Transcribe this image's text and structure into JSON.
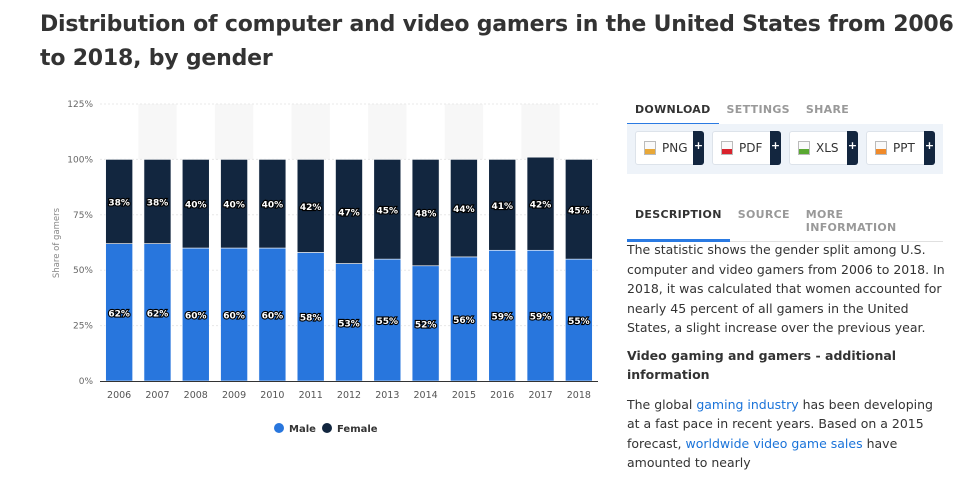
{
  "title": "Distribution of computer and video gamers in the United States from 2006 to 2018, by gender",
  "download_tabs": [
    "DOWNLOAD",
    "SETTINGS",
    "SHARE"
  ],
  "download_buttons": [
    {
      "label": "PNG",
      "color": "#e8a838"
    },
    {
      "label": "PDF",
      "color": "#d9232d"
    },
    {
      "label": "XLS",
      "color": "#5aa832"
    },
    {
      "label": "PPT",
      "color": "#f08a2a"
    }
  ],
  "plus": "+",
  "desc_tabs": [
    "DESCRIPTION",
    "SOURCE",
    "MORE INFORMATION"
  ],
  "description": {
    "p1": "The statistic shows the gender split among U.S. computer and video gamers from 2006 to 2018. In 2018, it was calculated that women accounted for nearly 45 percent of all gamers in the United States, a slight increase over the previous year.",
    "heading": "Video gaming and gamers - additional information",
    "p2_a": "The global ",
    "p2_link1": "gaming industry",
    "p2_b": " has been developing at a fast pace in recent years. Based on a 2015 forecast, ",
    "p2_link2": "worldwide video game sales",
    "p2_c": " have amounted to nearly"
  },
  "chart_data": {
    "type": "bar",
    "stacked": true,
    "categories": [
      "2006",
      "2007",
      "2008",
      "2009",
      "2010",
      "2011",
      "2012",
      "2013",
      "2014",
      "2015",
      "2016",
      "2017",
      "2018"
    ],
    "series": [
      {
        "name": "Male",
        "color": "#2876dd",
        "values": [
          62,
          62,
          60,
          60,
          60,
          58,
          53,
          55,
          52,
          56,
          59,
          59,
          55
        ]
      },
      {
        "name": "Female",
        "color": "#12263f",
        "values": [
          38,
          38,
          40,
          40,
          40,
          42,
          47,
          45,
          48,
          44,
          41,
          42,
          45
        ]
      }
    ],
    "ylabel": "Share of gamers",
    "ylim": [
      0,
      125
    ],
    "yticks": [
      "0%",
      "25%",
      "50%",
      "75%",
      "100%",
      "125%"
    ],
    "legend": "bottom-center"
  }
}
